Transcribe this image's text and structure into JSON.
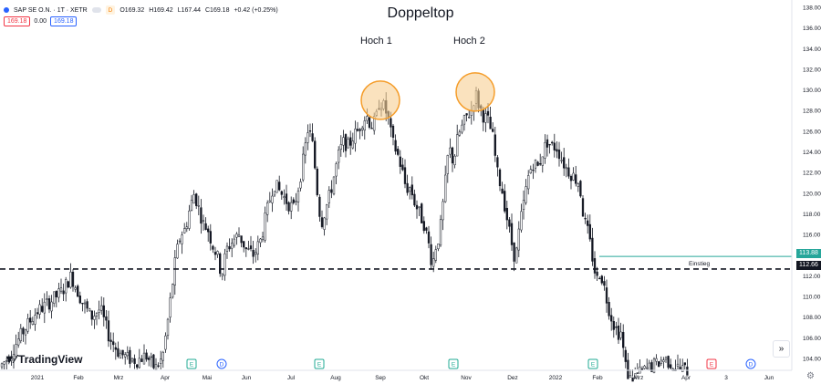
{
  "symbol": {
    "name": "SAP SE O.N.",
    "interval": "1T",
    "exchange": "XETR",
    "full_label": "SAP SE O.N. · 1T · XETR",
    "mode_badge": "D",
    "ohlc": {
      "open": "O169.32",
      "high": "H169.42",
      "low": "L167.44",
      "close": "C169.18",
      "change": "+0.42 (+0.25%)"
    }
  },
  "quote": {
    "bid": "169.18",
    "spread": "0.00",
    "ask": "169.18"
  },
  "title": "Doppeltop",
  "annotations": {
    "peak1": "Hoch 1",
    "peak2": "Hoch 2",
    "entry_label": "Einstieg"
  },
  "price_labels": {
    "entry": "113.88",
    "current": "112.66"
  },
  "logo_text": "TradingView",
  "settings_icon": "gear-icon",
  "goto_icon": "chevrons-right-icon",
  "colors": {
    "up": "#131722",
    "down": "#131722",
    "entry_line": "#26a69a",
    "support_line": "#131722",
    "circle_fill": "#f7cf93",
    "circle_stroke": "#f59d2a",
    "earnings": "#22ab94",
    "dividend": "#2962ff",
    "split": "#f23645",
    "bid": "#f23645",
    "ask": "#2962ff"
  },
  "chart_data": {
    "type": "candlestick",
    "title": "Doppeltop",
    "x_ticks": [
      "2021",
      "Feb",
      "Mrz",
      "Apr",
      "Mai",
      "Jun",
      "Jul",
      "Aug",
      "Sep",
      "Okt",
      "Nov",
      "Dez",
      "2022",
      "Feb",
      "Mrz",
      "Apr",
      "3",
      "Jun"
    ],
    "y_ticks": [
      "104.00",
      "106.00",
      "108.00",
      "110.00",
      "112.00",
      "114.00",
      "116.00",
      "118.00",
      "120.00",
      "122.00",
      "124.00",
      "126.00",
      "128.00",
      "130.00",
      "132.00",
      "134.00",
      "136.00",
      "138.00"
    ],
    "ylim": [
      102.5,
      138.7
    ],
    "support_level": 112.66,
    "entry_level": 113.88,
    "peaks": [
      {
        "label": "Hoch 1",
        "value": 129.0
      },
      {
        "label": "Hoch 2",
        "value": 129.8
      }
    ],
    "events": [
      {
        "type": "E",
        "x_tick": "Apr"
      },
      {
        "type": "D",
        "x_tick": "Mai"
      },
      {
        "type": "E",
        "x_tick": "Jul"
      },
      {
        "type": "E",
        "x_tick": "Okt"
      },
      {
        "type": "E",
        "x_tick": "Feb"
      },
      {
        "type": "E",
        "x_tick": "Apr"
      },
      {
        "type": "D",
        "x_tick": "Jun"
      }
    ],
    "price_path": [
      [
        0,
        103.2
      ],
      [
        8,
        104.0
      ],
      [
        18,
        105.5
      ],
      [
        28,
        107.0
      ],
      [
        40,
        108.5
      ],
      [
        55,
        109.5
      ],
      [
        68,
        110.5
      ],
      [
        78,
        112.0
      ],
      [
        90,
        109.5
      ],
      [
        100,
        108.0
      ],
      [
        110,
        108.8
      ],
      [
        120,
        106.0
      ],
      [
        130,
        104.6
      ],
      [
        140,
        104.0
      ],
      [
        150,
        103.8
      ],
      [
        160,
        104.3
      ],
      [
        170,
        103.0
      ],
      [
        178,
        104.0
      ],
      [
        183,
        107.0
      ],
      [
        188,
        110.5
      ],
      [
        193,
        114.0
      ],
      [
        198,
        116.0
      ],
      [
        203,
        116.5
      ],
      [
        208,
        118.5
      ],
      [
        213,
        120.0
      ],
      [
        218,
        118.5
      ],
      [
        223,
        117.0
      ],
      [
        228,
        116.5
      ],
      [
        233,
        115.0
      ],
      [
        238,
        114.0
      ],
      [
        243,
        112.0
      ],
      [
        248,
        114.5
      ],
      [
        256,
        115.5
      ],
      [
        262,
        116.0
      ],
      [
        270,
        114.5
      ],
      [
        278,
        114.0
      ],
      [
        286,
        115.5
      ],
      [
        292,
        118.0
      ],
      [
        300,
        121.0
      ],
      [
        308,
        120.0
      ],
      [
        316,
        119.0
      ],
      [
        322,
        118.5
      ],
      [
        328,
        121.0
      ],
      [
        333,
        123.5
      ],
      [
        338,
        126.5
      ],
      [
        343,
        124.5
      ],
      [
        348,
        120.0
      ],
      [
        352,
        117.0
      ],
      [
        357,
        118.5
      ],
      [
        362,
        120.0
      ],
      [
        367,
        122.0
      ],
      [
        372,
        124.0
      ],
      [
        377,
        125.0
      ],
      [
        382,
        124.5
      ],
      [
        387,
        125.5
      ],
      [
        392,
        126.0
      ],
      [
        397,
        127.0
      ],
      [
        402,
        127.5
      ],
      [
        407,
        126.5
      ],
      [
        412,
        127.0
      ],
      [
        416,
        129.0
      ],
      [
        420,
        128.5
      ],
      [
        425,
        127.5
      ],
      [
        430,
        125.0
      ],
      [
        435,
        124.0
      ],
      [
        440,
        122.5
      ],
      [
        445,
        120.5
      ],
      [
        450,
        120.5
      ],
      [
        455,
        119.0
      ],
      [
        460,
        118.0
      ],
      [
        465,
        117.0
      ],
      [
        470,
        115.0
      ],
      [
        474,
        113.0
      ],
      [
        478,
        115.0
      ],
      [
        482,
        116.0
      ],
      [
        487,
        120.0
      ],
      [
        492,
        124.5
      ],
      [
        497,
        123.0
      ],
      [
        502,
        125.5
      ],
      [
        507,
        126.5
      ],
      [
        512,
        127.5
      ],
      [
        517,
        128.0
      ],
      [
        521,
        129.8
      ],
      [
        525,
        128.5
      ],
      [
        530,
        127.5
      ],
      [
        535,
        127.0
      ],
      [
        540,
        125.5
      ],
      [
        545,
        122.0
      ],
      [
        550,
        120.5
      ],
      [
        555,
        118.0
      ],
      [
        560,
        115.5
      ],
      [
        565,
        113.5
      ],
      [
        570,
        117.0
      ],
      [
        575,
        119.5
      ],
      [
        580,
        122.0
      ],
      [
        585,
        123.0
      ],
      [
        590,
        122.5
      ],
      [
        595,
        124.0
      ],
      [
        600,
        125.0
      ],
      [
        605,
        124.5
      ],
      [
        610,
        124.5
      ],
      [
        615,
        123.5
      ],
      [
        620,
        122.5
      ],
      [
        625,
        122.0
      ],
      [
        630,
        121.5
      ],
      [
        635,
        121.0
      ],
      [
        640,
        117.5
      ],
      [
        645,
        116.0
      ],
      [
        650,
        113.5
      ],
      [
        654,
        111.5
      ],
      [
        658,
        112.5
      ],
      [
        662,
        111.0
      ],
      [
        667,
        109.0
      ],
      [
        672,
        107.5
      ],
      [
        677,
        106.5
      ],
      [
        681,
        106.5
      ],
      [
        685,
        103.5
      ],
      [
        690,
        102.0
      ],
      [
        700,
        102.5
      ],
      [
        710,
        103.0
      ],
      [
        720,
        103.5
      ],
      [
        728,
        104.0
      ],
      [
        736,
        103.5
      ],
      [
        745,
        103.0
      ],
      [
        755,
        102.8
      ]
    ]
  }
}
